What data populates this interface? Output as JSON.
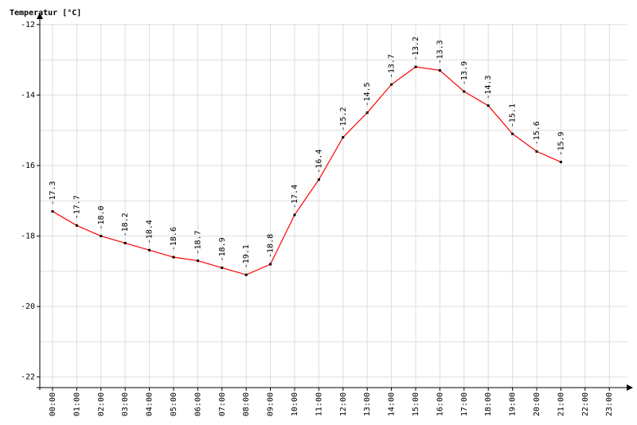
{
  "chart_data": {
    "type": "line",
    "title": "Temperatur [°C]",
    "categories": [
      "00:00",
      "01:00",
      "02:00",
      "03:00",
      "04:00",
      "05:00",
      "06:00",
      "07:00",
      "08:00",
      "09:00",
      "10:00",
      "11:00",
      "12:00",
      "13:00",
      "14:00",
      "15:00",
      "16:00",
      "17:00",
      "18:00",
      "19:00",
      "20:00",
      "21:00",
      "22:00",
      "23:00"
    ],
    "values": [
      -17.3,
      -17.7,
      -18.0,
      -18.2,
      -18.4,
      -18.6,
      -18.7,
      -18.9,
      -19.1,
      -18.8,
      -17.4,
      -16.4,
      -15.2,
      -14.5,
      -13.7,
      -13.2,
      -13.3,
      -13.9,
      -14.3,
      -15.1,
      -15.6,
      -15.9,
      null,
      null
    ],
    "value_labels": [
      "-17.3",
      "-17.7",
      "-18.0",
      "-18.2",
      "-18.4",
      "-18.6",
      "-18.7",
      "-18.9",
      "-19.1",
      "-18.8",
      "-17.4",
      "-16.4",
      "-15.2",
      "-14.5",
      "-13.7",
      "-13.2",
      "-13.3",
      "-13.9",
      "-14.3",
      "-15.1",
      "-15.6",
      "-15.9",
      null,
      null
    ],
    "color": "#ff0000",
    "ylim": [
      -22.3,
      -11.8
    ],
    "yticks": [
      -22,
      -20,
      -18,
      -16,
      -14,
      -12
    ],
    "minor_yticks": [
      -21,
      -19,
      -17,
      -15,
      -13
    ],
    "grid": true
  }
}
